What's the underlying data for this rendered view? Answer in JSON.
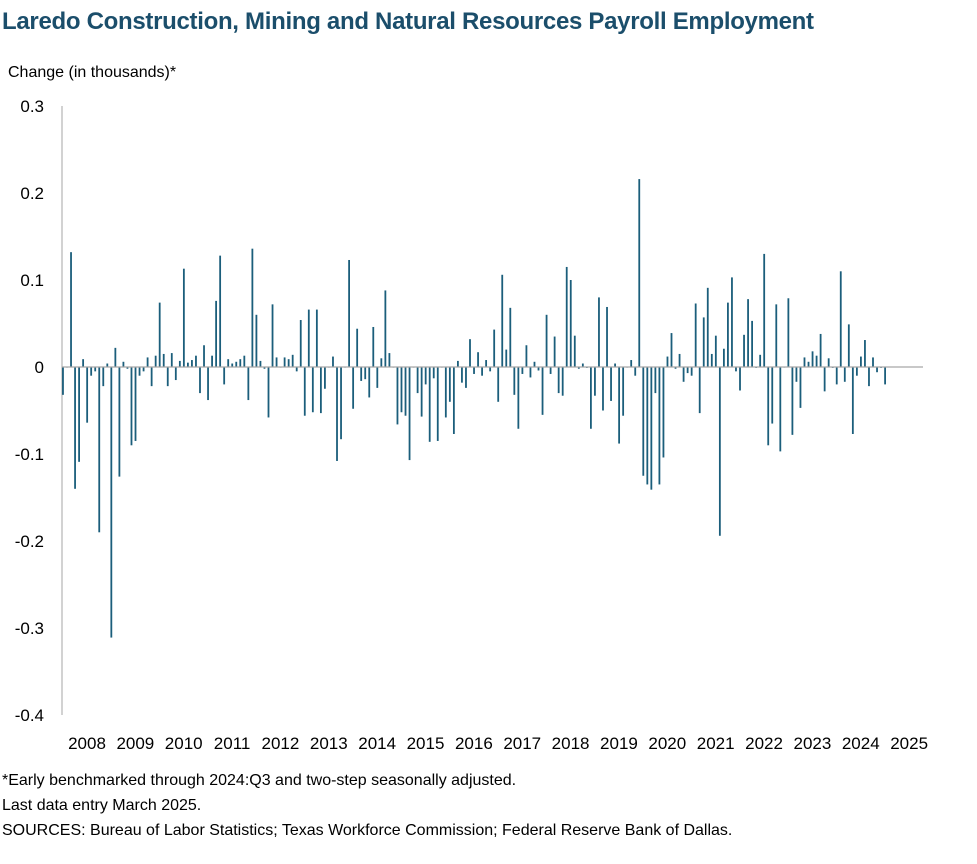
{
  "title": "Laredo Construction, Mining and Natural Resources Payroll Employment",
  "ylabel": "Change (in thousands)*",
  "notes": [
    "*Early benchmarked through 2024:Q3 and two-step seasonally adjusted.",
    "Last data entry March 2025.",
    "SOURCES: Bureau of Labor Statistics; Texas Workforce Commission; Federal Reserve Bank of Dallas."
  ],
  "chart_data": {
    "type": "bar",
    "title": "Laredo Construction, Mining and Natural Resources Payroll Employment",
    "ylabel": "Change (in thousands)*",
    "xlabel": "",
    "ylim": [
      -0.4,
      0.3
    ],
    "yticks": [
      0.3,
      0.2,
      0.1,
      0,
      -0.1,
      -0.2,
      -0.3,
      -0.4
    ],
    "ytick_labels": [
      "0.3",
      "0.2",
      "0.1",
      "0",
      "-0.1",
      "-0.2",
      "-0.3",
      "-0.4"
    ],
    "xtick_labels": [
      "2008",
      "2009",
      "2010",
      "2011",
      "2012",
      "2013",
      "2014",
      "2015",
      "2016",
      "2017",
      "2018",
      "2019",
      "2020",
      "2021",
      "2022",
      "2023",
      "2024",
      "2025"
    ],
    "start_year": 2007,
    "start_month": 12,
    "end_year": 2025,
    "end_month": 3,
    "color": "#1b5e7b",
    "grid": false,
    "values": [
      -0.032,
      0.0,
      0.132,
      -0.14,
      -0.109,
      0.009,
      -0.064,
      -0.01,
      -0.005,
      -0.19,
      -0.022,
      0.004,
      -0.311,
      0.022,
      -0.126,
      0.006,
      -0.002,
      -0.09,
      -0.085,
      -0.01,
      -0.005,
      0.011,
      -0.022,
      0.013,
      0.074,
      0.015,
      -0.022,
      0.016,
      -0.015,
      0.007,
      0.113,
      0.005,
      0.008,
      0.013,
      -0.03,
      0.025,
      -0.038,
      0.013,
      0.076,
      0.128,
      -0.02,
      0.009,
      0.004,
      0.006,
      0.009,
      0.013,
      -0.038,
      0.136,
      0.06,
      0.007,
      -0.002,
      -0.058,
      0.072,
      0.011,
      0.0,
      0.011,
      0.009,
      0.014,
      -0.005,
      0.054,
      -0.056,
      0.066,
      -0.052,
      0.066,
      -0.053,
      -0.025,
      0.0,
      0.012,
      -0.108,
      -0.083,
      0.0,
      0.123,
      -0.048,
      0.044,
      -0.016,
      -0.014,
      -0.035,
      0.046,
      -0.024,
      0.01,
      0.088,
      0.016,
      0.0,
      -0.066,
      -0.052,
      -0.056,
      -0.107,
      0.0,
      -0.03,
      -0.057,
      -0.02,
      -0.086,
      -0.013,
      -0.085,
      0.0,
      -0.058,
      -0.04,
      -0.077,
      0.007,
      -0.018,
      -0.024,
      0.032,
      -0.008,
      0.017,
      -0.01,
      0.008,
      -0.005,
      0.043,
      -0.04,
      0.106,
      0.02,
      0.068,
      -0.032,
      -0.071,
      -0.008,
      0.025,
      -0.012,
      0.006,
      -0.004,
      -0.055,
      0.06,
      -0.008,
      0.035,
      -0.03,
      -0.033,
      0.115,
      0.1,
      0.036,
      -0.002,
      0.004,
      -0.001,
      -0.071,
      -0.033,
      0.08,
      -0.05,
      0.069,
      -0.039,
      0.004,
      -0.088,
      -0.056,
      0.0,
      0.008,
      -0.01,
      0.216,
      -0.125,
      -0.135,
      -0.141,
      -0.03,
      -0.135,
      -0.104,
      0.012,
      0.039,
      -0.002,
      0.015,
      -0.017,
      -0.007,
      -0.01,
      0.073,
      -0.053,
      0.057,
      0.091,
      0.015,
      0.036,
      -0.194,
      0.021,
      0.074,
      0.103,
      -0.005,
      -0.027,
      0.037,
      0.078,
      0.053,
      -0.001,
      0.014,
      0.13,
      -0.09,
      -0.065,
      0.072,
      -0.097,
      0.0,
      0.079,
      -0.078,
      -0.017,
      -0.047,
      0.011,
      0.006,
      0.018,
      0.013,
      0.038,
      -0.028,
      0.01,
      -0.001,
      -0.02,
      0.11,
      -0.017,
      0.049,
      -0.077,
      -0.01,
      0.012,
      0.031,
      -0.022,
      0.011,
      -0.006,
      -0.001,
      -0.02
    ]
  }
}
